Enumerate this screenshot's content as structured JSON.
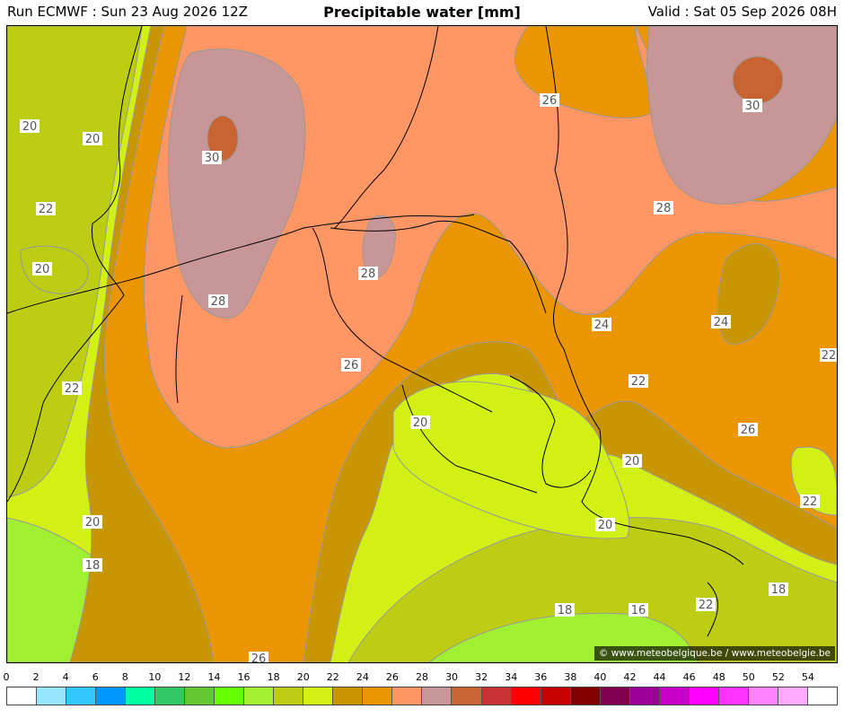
{
  "header": {
    "run": "Run ECMWF : Sun 23 Aug 2026 12Z",
    "title": "Precipitable water [mm]",
    "valid": "Valid : Sat 05 Sep 2026 08H"
  },
  "credit": "© www.meteobelgique.be / www.meteobelgie.be",
  "map_labels": [
    "20",
    "20",
    "22",
    "20",
    "22",
    "30",
    "28",
    "28",
    "26",
    "20",
    "20",
    "18",
    "26",
    "30",
    "28",
    "24",
    "24",
    "22",
    "26",
    "20",
    "22",
    "20",
    "18",
    "16",
    "22",
    "22",
    "18",
    "22"
  ],
  "legend": {
    "ticks": [
      "0",
      "2",
      "4",
      "6",
      "8",
      "10",
      "12",
      "14",
      "16",
      "18",
      "20",
      "22",
      "24",
      "26",
      "28",
      "30",
      "32",
      "34",
      "36",
      "38",
      "40",
      "42",
      "44",
      "46",
      "48",
      "50",
      "52",
      "54"
    ],
    "colors": [
      "#ffffff",
      "#96e6ff",
      "#32c8ff",
      "#0096ff",
      "#00ffa0",
      "#32c864",
      "#64c832",
      "#64ff00",
      "#a0f032",
      "#bccd14",
      "#d2f014",
      "#c89600",
      "#eb9600",
      "#ff9664",
      "#c89696",
      "#c86432",
      "#c83232",
      "#ff0000",
      "#c80000",
      "#820000",
      "#820050",
      "#9b009b",
      "#c800c8",
      "#ff00ff",
      "#ff32ff",
      "#ff82ff",
      "#ffaaff",
      "#ffffff"
    ]
  },
  "colors": {
    "pw16_18": "#a0f032",
    "pw18_20": "#bccd14",
    "pw20_22": "#d2f014",
    "pw22_24": "#c89600",
    "pw24_26": "#eb9600",
    "pw26_28": "#ff9664",
    "pw28_30": "#c89696",
    "pw30_32": "#c86432"
  }
}
